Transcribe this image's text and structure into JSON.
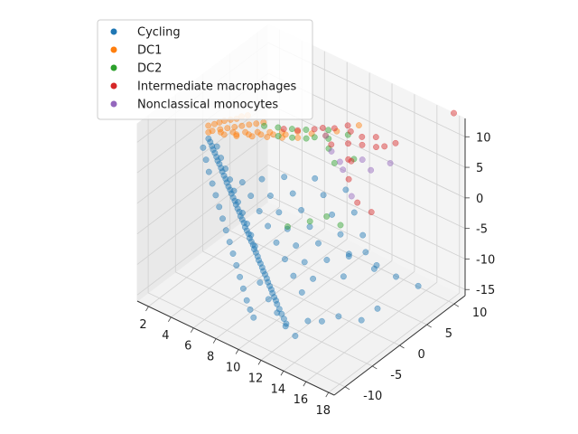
{
  "chart_data": {
    "type": "scatter",
    "projection": "3d",
    "grid": true,
    "legend_placement": "top-left",
    "xlim": [
      1,
      18.5
    ],
    "ylim": [
      -12,
      12
    ],
    "zlim": [
      -16,
      13
    ],
    "x_ticks": [
      "2",
      "4",
      "6",
      "8",
      "10",
      "12",
      "14",
      "16",
      "18"
    ],
    "y_ticks": [
      "-10",
      "-5",
      "0",
      "5",
      "10"
    ],
    "z_ticks": [
      "-15",
      "-10",
      "-5",
      "0",
      "5",
      "10"
    ],
    "colors": {
      "Cycling": "#1f77b4",
      "DC1": "#ff7f0e",
      "DC2": "#2ca02c",
      "Intermediate macrophages": "#d62728",
      "Nonclassical monocytes": "#9467bd"
    },
    "series": [
      {
        "name": "Cycling",
        "points": [
          [
            2.0,
            -1.0,
            4.0
          ],
          [
            2.2,
            -1.1,
            3.7
          ],
          [
            2.4,
            -1.2,
            3.3
          ],
          [
            2.6,
            -1.4,
            3.0
          ],
          [
            2.8,
            -1.5,
            2.7
          ],
          [
            3.0,
            -1.6,
            2.3
          ],
          [
            3.2,
            -1.8,
            2.0
          ],
          [
            3.4,
            -1.9,
            1.7
          ],
          [
            3.6,
            -2.0,
            1.3
          ],
          [
            3.8,
            -2.2,
            1.0
          ],
          [
            4.0,
            -2.3,
            0.6
          ],
          [
            4.2,
            -2.4,
            0.3
          ],
          [
            4.4,
            -2.6,
            0.0
          ],
          [
            4.6,
            -2.7,
            -0.4
          ],
          [
            4.8,
            -2.8,
            -0.7
          ],
          [
            5.0,
            -3.0,
            -1.0
          ],
          [
            5.2,
            -3.1,
            -1.4
          ],
          [
            5.4,
            -3.2,
            -1.7
          ],
          [
            5.6,
            -3.4,
            -2.0
          ],
          [
            5.8,
            -3.5,
            -2.4
          ],
          [
            6.0,
            -3.6,
            -2.7
          ],
          [
            6.2,
            -3.8,
            -3.1
          ],
          [
            6.4,
            -3.9,
            -3.4
          ],
          [
            6.6,
            -4.0,
            -3.7
          ],
          [
            6.8,
            -4.2,
            -4.1
          ],
          [
            7.0,
            -4.3,
            -4.4
          ],
          [
            7.2,
            -4.4,
            -4.7
          ],
          [
            7.4,
            -4.6,
            -5.1
          ],
          [
            7.6,
            -4.7,
            -5.4
          ],
          [
            7.8,
            -4.8,
            -5.7
          ],
          [
            8.0,
            -5.0,
            -6.1
          ],
          [
            8.2,
            -5.1,
            -6.4
          ],
          [
            8.4,
            -5.2,
            -6.8
          ],
          [
            8.6,
            -5.4,
            -7.1
          ],
          [
            8.8,
            -5.5,
            -7.4
          ],
          [
            9.0,
            -5.6,
            -7.8
          ],
          [
            9.2,
            -5.8,
            -8.1
          ],
          [
            9.4,
            -5.9,
            -8.4
          ],
          [
            9.6,
            -6.0,
            -8.8
          ],
          [
            9.8,
            -6.2,
            -9.1
          ],
          [
            10.0,
            -6.3,
            -9.5
          ],
          [
            10.2,
            -6.4,
            -9.8
          ],
          [
            10.4,
            -6.6,
            -10.1
          ],
          [
            10.6,
            -6.7,
            -10.5
          ],
          [
            10.8,
            -6.8,
            -10.8
          ],
          [
            11.0,
            -7.0,
            -11.1
          ],
          [
            11.3,
            -7.2,
            -11.5
          ],
          [
            11.6,
            -7.4,
            -11.9
          ],
          [
            11.9,
            -7.6,
            -12.3
          ],
          [
            12.2,
            -7.8,
            -12.7
          ],
          [
            2.5,
            -0.5,
            2.8
          ],
          [
            3.0,
            -0.8,
            1.6
          ],
          [
            3.5,
            -1.0,
            0.4
          ],
          [
            4.0,
            -1.2,
            -0.8
          ],
          [
            4.5,
            -1.5,
            -2.0
          ],
          [
            5.0,
            -1.8,
            -3.2
          ],
          [
            5.5,
            -2.0,
            -4.4
          ],
          [
            6.0,
            -2.2,
            -5.6
          ],
          [
            6.5,
            -2.5,
            -6.8
          ],
          [
            7.0,
            -2.8,
            -8.0
          ],
          [
            2.0,
            -2.0,
            3.2
          ],
          [
            2.5,
            -2.5,
            2.0
          ],
          [
            3.0,
            -3.0,
            0.8
          ],
          [
            3.5,
            -3.4,
            -0.4
          ],
          [
            4.0,
            -3.8,
            -1.6
          ],
          [
            4.5,
            -4.2,
            -2.8
          ],
          [
            5.0,
            -4.6,
            -4.0
          ],
          [
            5.5,
            -5.0,
            -5.2
          ],
          [
            6.0,
            -5.4,
            -6.4
          ],
          [
            6.5,
            -5.8,
            -7.6
          ],
          [
            7.0,
            -6.2,
            -8.8
          ],
          [
            7.5,
            -6.6,
            -10.0
          ],
          [
            8.0,
            -7.0,
            -11.2
          ],
          [
            8.5,
            -7.4,
            -12.4
          ],
          [
            9.0,
            -7.8,
            -13.2
          ],
          [
            9.5,
            -8.2,
            -13.8
          ],
          [
            5.0,
            -1.0,
            -0.5
          ],
          [
            6.0,
            -1.5,
            -1.5
          ],
          [
            7.0,
            -2.0,
            -2.8
          ],
          [
            8.0,
            -2.5,
            -4.0
          ],
          [
            9.0,
            -3.0,
            -5.5
          ],
          [
            10.0,
            -3.5,
            -7.0
          ],
          [
            11.0,
            -4.0,
            -8.5
          ],
          [
            12.0,
            -4.5,
            -10.0
          ],
          [
            6.5,
            -0.5,
            1.0
          ],
          [
            7.5,
            -1.0,
            -0.5
          ],
          [
            8.5,
            -1.5,
            -2.0
          ],
          [
            9.5,
            -2.0,
            -3.5
          ],
          [
            10.5,
            -2.5,
            -5.0
          ],
          [
            11.5,
            -3.0,
            -6.5
          ],
          [
            12.5,
            -3.5,
            -8.0
          ],
          [
            8.0,
            0.5,
            2.0
          ],
          [
            9.0,
            0.0,
            0.5
          ],
          [
            10.0,
            -0.5,
            -1.0
          ],
          [
            11.0,
            -1.0,
            -2.5
          ],
          [
            12.0,
            -1.5,
            -4.0
          ],
          [
            13.0,
            -2.0,
            -5.5
          ],
          [
            10.0,
            2.0,
            2.5
          ],
          [
            11.0,
            1.5,
            1.0
          ],
          [
            12.0,
            1.0,
            -1.0
          ],
          [
            13.0,
            0.5,
            -3.0
          ],
          [
            14.0,
            0.0,
            -5.0
          ],
          [
            12.5,
            2.5,
            2.5
          ],
          [
            13.5,
            2.0,
            0.0
          ],
          [
            14.5,
            1.5,
            -2.5
          ],
          [
            15.0,
            1.0,
            -4.5
          ],
          [
            16.0,
            0.5,
            -6.0
          ],
          [
            17.5,
            -2.0,
            -9.5
          ],
          [
            16.8,
            -3.5,
            -11.0
          ],
          [
            15.5,
            -5.0,
            -10.5
          ],
          [
            14.5,
            -6.0,
            -11.5
          ],
          [
            13.5,
            -6.5,
            -12.0
          ],
          [
            9.0,
            -6.0,
            -10.0
          ],
          [
            10.0,
            -6.5,
            -11.5
          ],
          [
            11.0,
            -7.0,
            -12.5
          ],
          [
            12.0,
            -7.5,
            -13.5
          ],
          [
            13.0,
            -7.8,
            -14.0
          ],
          [
            15.0,
            3.0,
            -8.0
          ],
          [
            16.0,
            4.5,
            -10.0
          ],
          [
            17.0,
            6.5,
            -12.0
          ],
          [
            13.5,
            1.0,
            -6.5
          ],
          [
            14.0,
            -1.0,
            -8.0
          ]
        ]
      },
      {
        "name": "DC1",
        "points": [
          [
            1.5,
            0.0,
            5.0
          ],
          [
            1.8,
            0.5,
            5.2
          ],
          [
            2.0,
            1.0,
            5.3
          ],
          [
            2.2,
            1.5,
            5.4
          ],
          [
            2.5,
            2.0,
            5.5
          ],
          [
            2.8,
            2.5,
            5.6
          ],
          [
            3.0,
            3.0,
            5.8
          ],
          [
            3.3,
            3.5,
            5.9
          ],
          [
            2.0,
            -0.3,
            4.8
          ],
          [
            2.4,
            0.3,
            5.0
          ],
          [
            2.8,
            0.8,
            5.2
          ],
          [
            3.2,
            1.3,
            5.4
          ],
          [
            3.6,
            1.8,
            5.6
          ],
          [
            4.0,
            2.3,
            5.8
          ],
          [
            4.4,
            2.8,
            6.0
          ],
          [
            4.8,
            3.3,
            6.2
          ],
          [
            1.8,
            -0.6,
            4.6
          ],
          [
            2.6,
            0.0,
            4.9
          ],
          [
            3.4,
            0.6,
            5.2
          ],
          [
            4.2,
            1.2,
            5.5
          ],
          [
            5.0,
            1.8,
            5.8
          ],
          [
            5.8,
            2.4,
            6.1
          ],
          [
            6.6,
            3.0,
            6.4
          ],
          [
            3.0,
            -0.2,
            5.0
          ],
          [
            3.8,
            0.4,
            5.3
          ],
          [
            4.6,
            1.0,
            5.6
          ],
          [
            5.4,
            1.6,
            5.9
          ],
          [
            6.2,
            2.2,
            6.2
          ],
          [
            7.0,
            2.8,
            6.5
          ],
          [
            4.0,
            0.0,
            5.5
          ],
          [
            5.0,
            0.8,
            5.8
          ],
          [
            6.0,
            1.5,
            6.1
          ],
          [
            7.0,
            2.2,
            6.4
          ],
          [
            8.0,
            3.0,
            6.7
          ],
          [
            10.0,
            6.0,
            7.5
          ],
          [
            9.5,
            5.0,
            7.0
          ],
          [
            8.5,
            4.5,
            6.8
          ],
          [
            11.0,
            8.0,
            8.0
          ],
          [
            7.5,
            4.0,
            6.6
          ]
        ]
      },
      {
        "name": "DC2",
        "points": [
          [
            5.0,
            3.0,
            6.0
          ],
          [
            6.0,
            3.5,
            6.3
          ],
          [
            7.0,
            4.0,
            6.6
          ],
          [
            8.0,
            4.5,
            7.0
          ],
          [
            6.5,
            2.5,
            6.0
          ],
          [
            7.5,
            3.0,
            6.3
          ],
          [
            8.5,
            3.5,
            6.7
          ],
          [
            9.0,
            4.0,
            7.0
          ],
          [
            10.0,
            4.5,
            7.3
          ],
          [
            9.5,
            5.5,
            7.6
          ],
          [
            11.0,
            6.0,
            7.8
          ],
          [
            10.5,
            3.5,
            6.8
          ],
          [
            12.5,
            4.0,
            6.5
          ],
          [
            11.5,
            2.5,
            6.0
          ],
          [
            10.0,
            -3.0,
            -2.0
          ],
          [
            11.5,
            -2.0,
            -0.5
          ],
          [
            12.5,
            -1.0,
            0.5
          ],
          [
            13.0,
            0.5,
            -1.5
          ]
        ]
      },
      {
        "name": "Intermediate macrophages",
        "points": [
          [
            6.5,
            3.5,
            6.5
          ],
          [
            7.5,
            4.0,
            6.8
          ],
          [
            8.5,
            5.0,
            7.2
          ],
          [
            9.0,
            5.5,
            7.5
          ],
          [
            9.8,
            6.0,
            7.8
          ],
          [
            10.5,
            7.0,
            8.2
          ],
          [
            11.0,
            6.5,
            8.0
          ],
          [
            11.5,
            5.0,
            7.5
          ],
          [
            12.0,
            6.5,
            8.0
          ],
          [
            12.5,
            5.5,
            7.8
          ],
          [
            13.0,
            7.0,
            8.5
          ],
          [
            13.5,
            6.0,
            8.0
          ],
          [
            14.0,
            6.5,
            8.2
          ],
          [
            14.5,
            7.5,
            8.5
          ],
          [
            12.5,
            3.5,
            6.5
          ],
          [
            13.0,
            2.0,
            5.0
          ],
          [
            14.5,
            0.5,
            3.5
          ],
          [
            15.5,
            1.0,
            2.5
          ],
          [
            10.0,
            5.0,
            6.0
          ],
          [
            12.0,
            4.0,
            6.0
          ],
          [
            17.5,
            12.0,
            13.0
          ]
        ]
      },
      {
        "name": "Nonclassical monocytes",
        "points": [
          [
            9.5,
            5.0,
            7.0
          ],
          [
            10.5,
            4.0,
            6.0
          ],
          [
            11.5,
            3.5,
            5.5
          ],
          [
            13.0,
            4.5,
            6.5
          ],
          [
            12.0,
            3.0,
            5.0
          ],
          [
            14.0,
            4.0,
            6.0
          ],
          [
            15.0,
            5.5,
            7.0
          ],
          [
            13.5,
            1.5,
            3.0
          ]
        ]
      }
    ]
  }
}
